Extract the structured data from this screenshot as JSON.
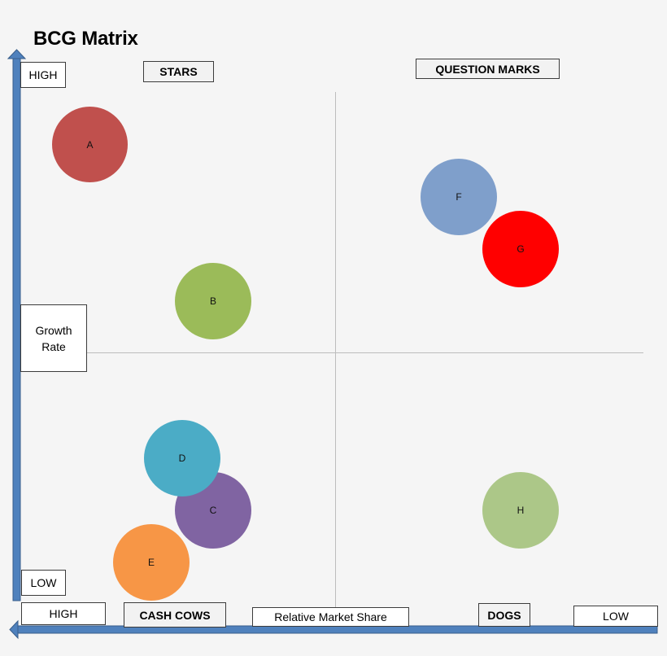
{
  "title": "BCG Matrix",
  "quadrants": {
    "stars": "STARS",
    "question_marks": "QUESTION MARKS",
    "cash_cows": "CASH COWS",
    "dogs": "DOGS"
  },
  "y_axis": {
    "high": "HIGH",
    "low": "LOW",
    "label_line1": "Growth",
    "label_line2": "Rate"
  },
  "x_axis": {
    "high": "HIGH",
    "low": "LOW",
    "label": "Relative Market Share"
  },
  "bubbles": [
    {
      "id": "A",
      "color": "#c0504d"
    },
    {
      "id": "B",
      "color": "#9bbb59"
    },
    {
      "id": "C",
      "color": "#8064a2"
    },
    {
      "id": "D",
      "color": "#4bacc6"
    },
    {
      "id": "E",
      "color": "#f79646"
    },
    {
      "id": "F",
      "color": "#7f9fcb"
    },
    {
      "id": "G",
      "color": "#ff0000"
    },
    {
      "id": "H",
      "color": "#acc788"
    }
  ],
  "colors": {
    "axis": "#4f81bd",
    "axis_outline": "#385d8a",
    "divider": "#bdbdbd"
  }
}
